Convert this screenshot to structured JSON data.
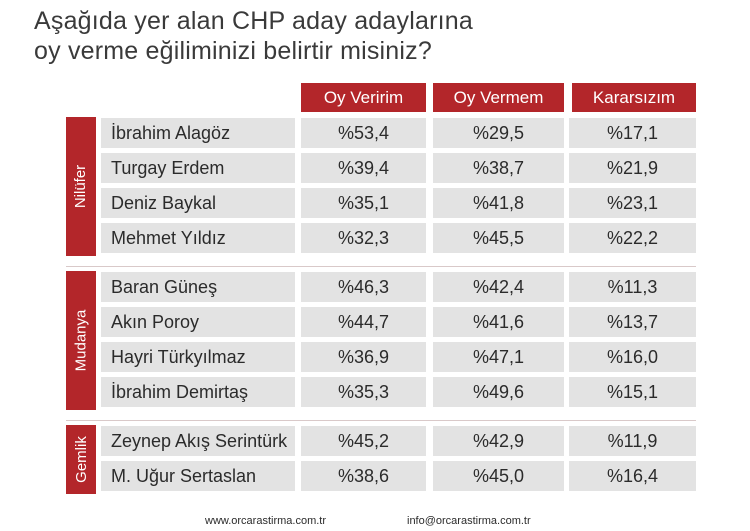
{
  "title": {
    "line1": "Aşağıda yer alan  CHP aday adaylarına",
    "line2": "oy verme eğiliminizi belirtir misiniz?"
  },
  "colors": {
    "accent": "#b3262a",
    "cell_bg": "#e3e3e3",
    "text": "#2b2b2b"
  },
  "footer": {
    "website": "www.orcarastirma.com.tr",
    "email": "info@orcarastirma.com.tr"
  },
  "chart_data": {
    "type": "table",
    "columns": [
      "Oy Veririm",
      "Oy Vermem",
      "Kararsızım"
    ],
    "groups": [
      {
        "name": "Nilüfer",
        "rows": [
          {
            "name": "İbrahim Alagöz",
            "values": [
              "%53,4",
              "%29,5",
              "%17,1"
            ]
          },
          {
            "name": "Turgay Erdem",
            "values": [
              "%39,4",
              "%38,7",
              "%21,9"
            ]
          },
          {
            "name": "Deniz Baykal",
            "values": [
              "%35,1",
              "%41,8",
              "%23,1"
            ]
          },
          {
            "name": "Mehmet Yıldız",
            "values": [
              "%32,3",
              "%45,5",
              "%22,2"
            ]
          }
        ]
      },
      {
        "name": "Mudanya",
        "rows": [
          {
            "name": "Baran Güneş",
            "values": [
              "%46,3",
              "%42,4",
              "%11,3"
            ]
          },
          {
            "name": "Akın Poroy",
            "values": [
              "%44,7",
              "%41,6",
              "%13,7"
            ]
          },
          {
            "name": "Hayri Türkyılmaz",
            "values": [
              "%36,9",
              "%47,1",
              "%16,0"
            ]
          },
          {
            "name": "İbrahim Demirtaş",
            "values": [
              "%35,3",
              "%49,6",
              "%15,1"
            ]
          }
        ]
      },
      {
        "name": "Gemlik",
        "rows": [
          {
            "name": "Zeynep Akış Serintürk",
            "values": [
              "%45,2",
              "%42,9",
              "%11,9"
            ]
          },
          {
            "name": "M. Uğur Sertaslan",
            "values": [
              "%38,6",
              "%45,0",
              "%16,4"
            ]
          }
        ]
      }
    ]
  }
}
